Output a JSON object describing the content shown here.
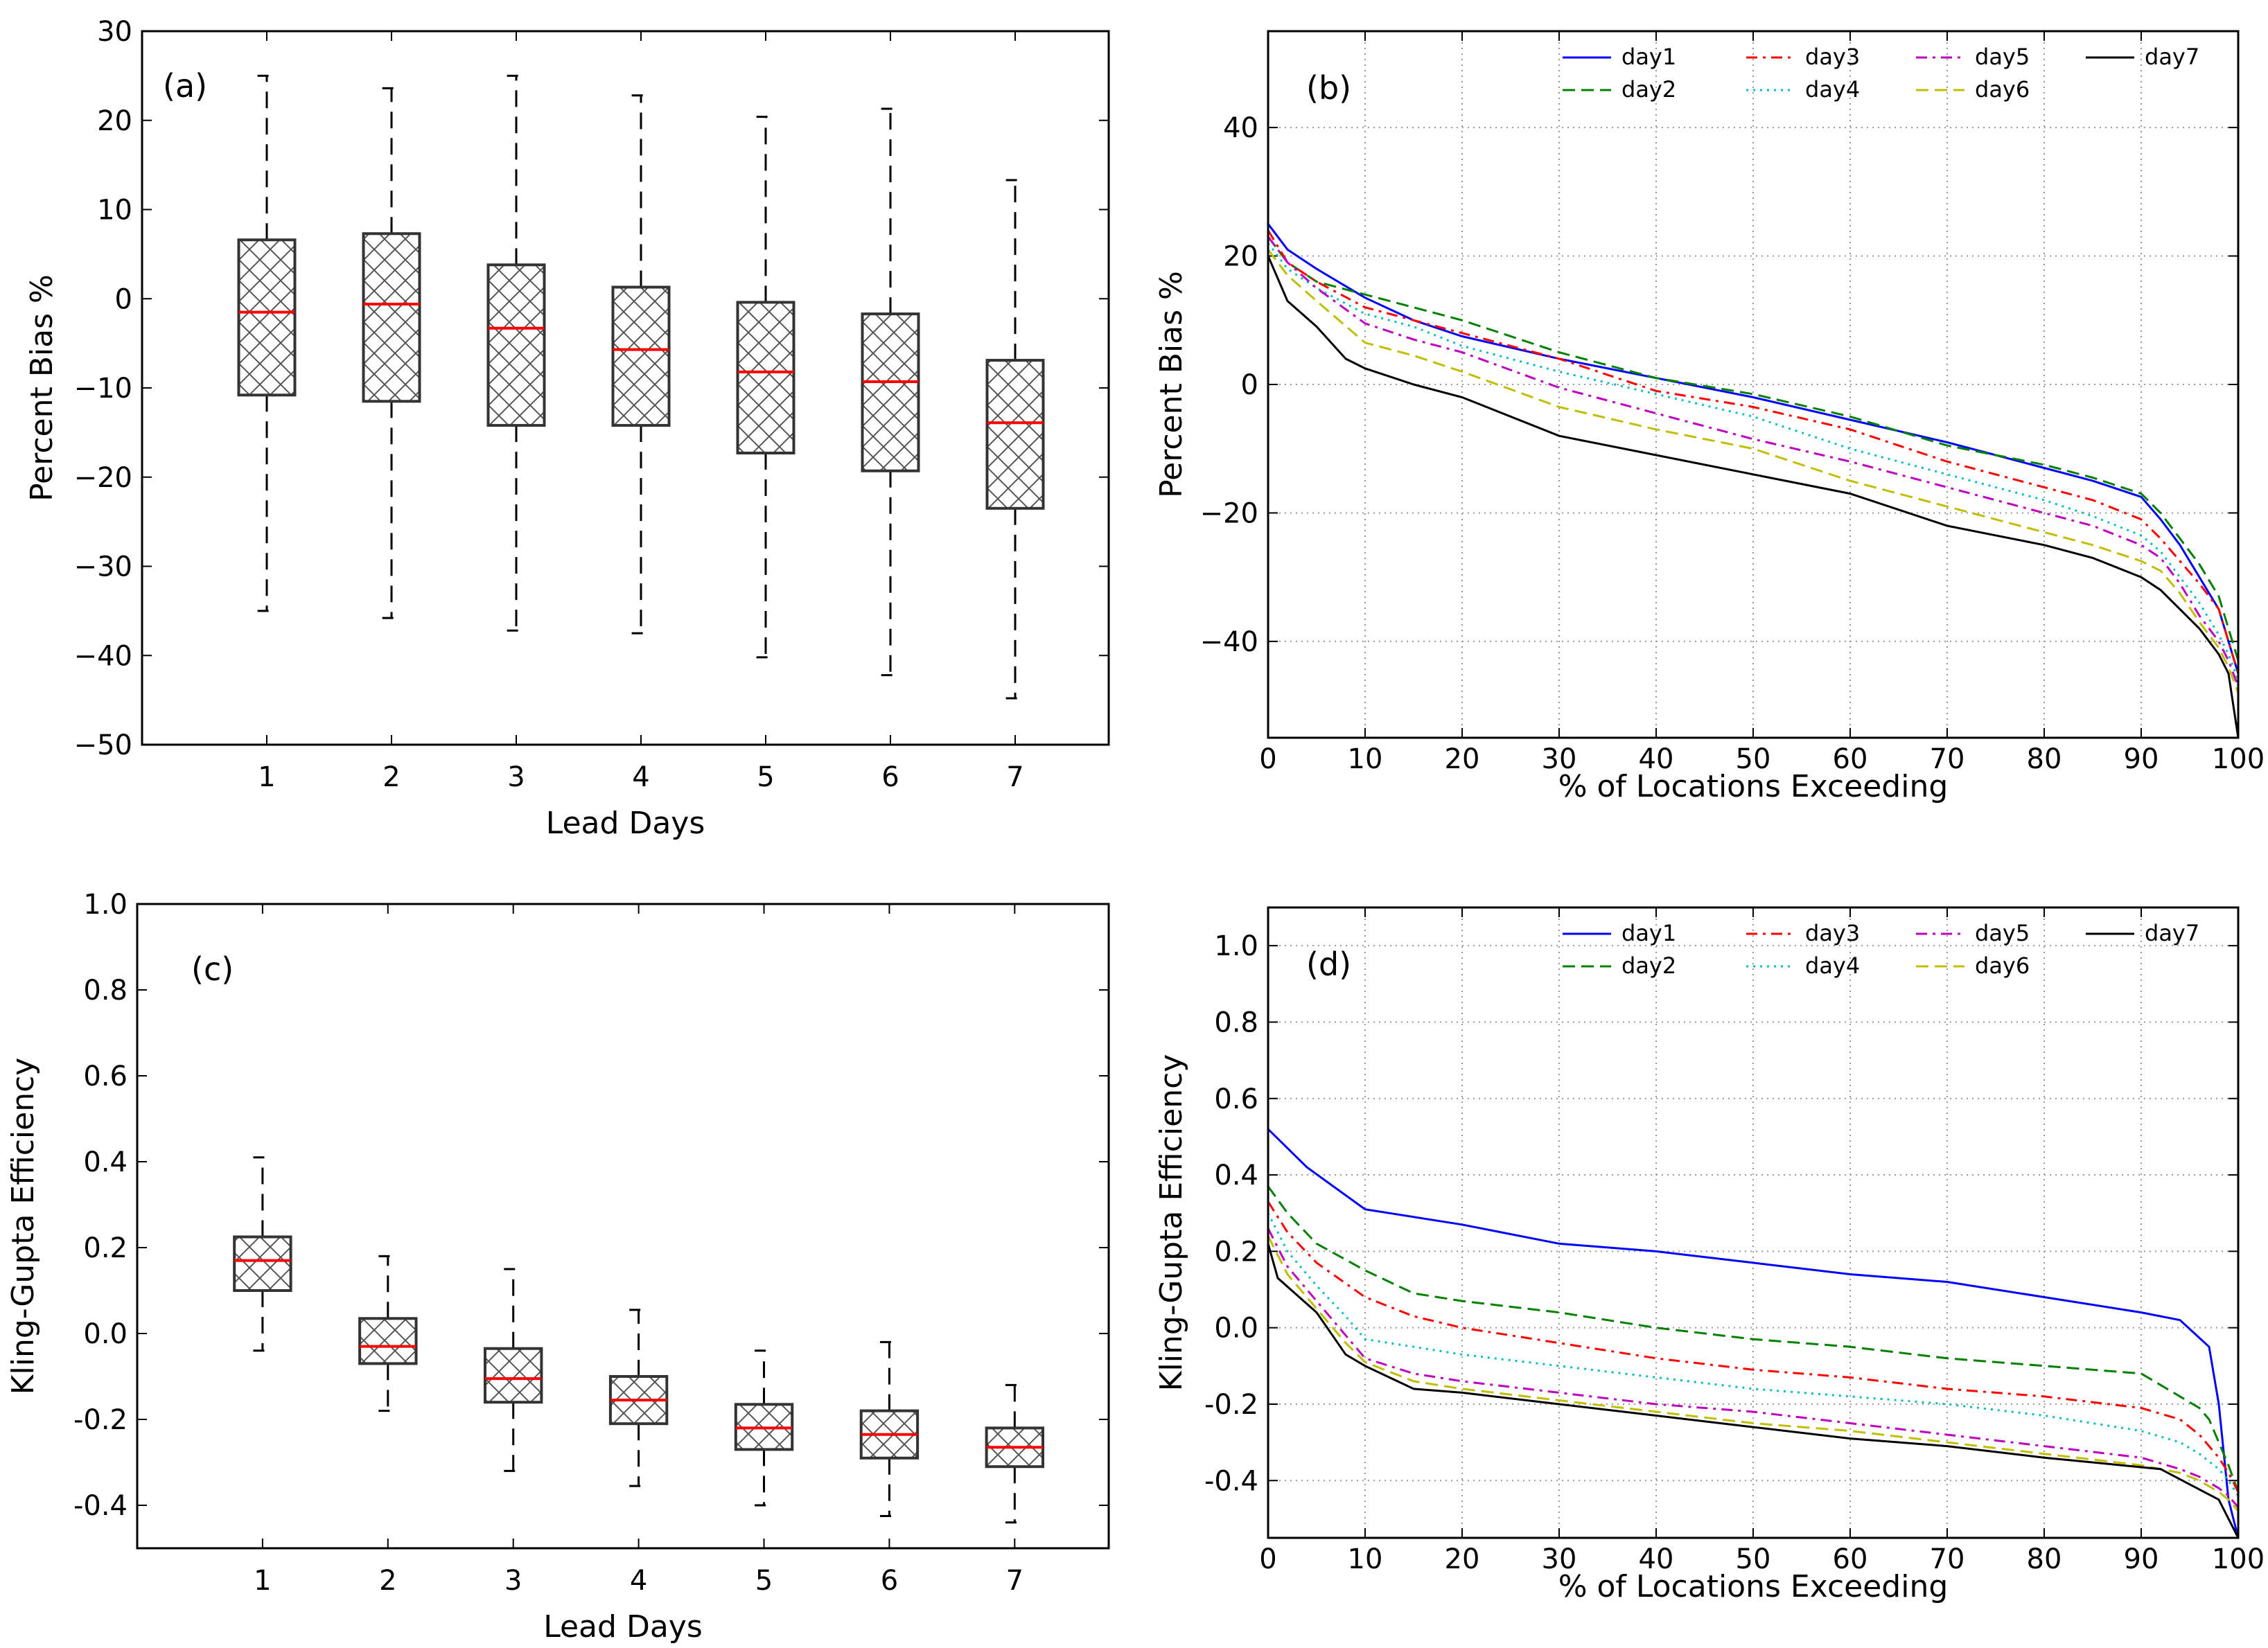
{
  "chart_data": [
    {
      "id": "a",
      "type": "boxplot",
      "panel_label": "(a)",
      "xlabel": "Lead Days",
      "ylabel": "Percent Bias %",
      "ylim": [
        -50,
        30
      ],
      "yticks": [
        30,
        20,
        10,
        0,
        -10,
        -20,
        -30,
        -40,
        -50
      ],
      "xlim": [
        0,
        7.75
      ],
      "categories": [
        "1",
        "2",
        "3",
        "4",
        "5",
        "6",
        "7"
      ],
      "boxes": [
        {
          "whislo": -35,
          "q1": -10.8,
          "med": -1.5,
          "q3": 6.6,
          "whishi": 25
        },
        {
          "whislo": -35.8,
          "q1": -11.5,
          "med": -0.6,
          "q3": 7.3,
          "whishi": 23.6
        },
        {
          "whislo": -37.2,
          "q1": -14.2,
          "med": -3.3,
          "q3": 3.8,
          "whishi": 25
        },
        {
          "whislo": -37.5,
          "q1": -14.2,
          "med": -5.7,
          "q3": 1.3,
          "whishi": 22.8
        },
        {
          "whislo": -40.2,
          "q1": -17.3,
          "med": -8.2,
          "q3": -0.4,
          "whishi": 20.4
        },
        {
          "whislo": -42.2,
          "q1": -19.3,
          "med": -9.3,
          "q3": -1.7,
          "whishi": 21.3
        },
        {
          "whislo": -44.8,
          "q1": -23.5,
          "med": -13.9,
          "q3": -6.9,
          "whishi": 13.3
        }
      ]
    },
    {
      "id": "b",
      "type": "line",
      "panel_label": "(b)",
      "xlabel": "% of Locations Exceeding",
      "ylabel": "Percent Bias %",
      "xlim": [
        0,
        100
      ],
      "ylim": [
        -55,
        55
      ],
      "xticks": [
        0,
        10,
        20,
        30,
        40,
        50,
        60,
        70,
        80,
        90,
        100
      ],
      "yticks": [
        40,
        20,
        0,
        -20,
        -40
      ],
      "grid": true,
      "legend": "top",
      "series": [
        {
          "name": "day1",
          "color": "#0000ff",
          "dash": "",
          "x": [
            0,
            2,
            5,
            10,
            15,
            20,
            30,
            40,
            50,
            60,
            70,
            80,
            85,
            90,
            92,
            94,
            96,
            98,
            99,
            100
          ],
          "y": [
            25,
            21,
            18,
            13.5,
            10,
            7.5,
            4,
            1,
            -2,
            -5.5,
            -9,
            -13,
            -15,
            -17.5,
            -21,
            -25,
            -30,
            -35,
            -40,
            -45
          ]
        },
        {
          "name": "day2",
          "color": "#008000",
          "dash": "18 9",
          "x": [
            0,
            2,
            5,
            10,
            15,
            20,
            30,
            40,
            50,
            60,
            70,
            80,
            85,
            90,
            92,
            94,
            96,
            98,
            99,
            100
          ],
          "y": [
            23,
            19,
            16,
            14,
            12,
            10,
            5,
            1,
            -1.5,
            -5,
            -9.5,
            -12.5,
            -14.5,
            -17,
            -20,
            -24,
            -28,
            -33,
            -38,
            -43
          ]
        },
        {
          "name": "day3",
          "color": "#ff0000",
          "dash": "16 8 4 8",
          "x": [
            0,
            2,
            5,
            10,
            15,
            20,
            30,
            40,
            50,
            60,
            70,
            80,
            85,
            90,
            92,
            94,
            96,
            98,
            99,
            100
          ],
          "y": [
            24,
            19,
            16,
            12,
            10,
            8,
            4,
            -1,
            -3.5,
            -7,
            -12,
            -16,
            -18,
            -21,
            -24,
            -27.5,
            -31,
            -35,
            -40,
            -45
          ]
        },
        {
          "name": "day4",
          "color": "#00bfbf",
          "dash": "3 7",
          "x": [
            0,
            2,
            5,
            10,
            15,
            20,
            30,
            40,
            50,
            60,
            70,
            80,
            85,
            90,
            92,
            94,
            96,
            98,
            99,
            100
          ],
          "y": [
            22,
            18,
            15,
            11,
            9,
            6,
            2,
            -1.5,
            -5,
            -10,
            -14,
            -18,
            -20.5,
            -23.5,
            -26,
            -30,
            -34,
            -39,
            -42,
            -46
          ]
        },
        {
          "name": "day5",
          "color": "#bf00bf",
          "dash": "16 8 4 8",
          "x": [
            0,
            2,
            5,
            10,
            15,
            20,
            30,
            40,
            50,
            60,
            70,
            80,
            85,
            90,
            92,
            94,
            96,
            98,
            99,
            100
          ],
          "y": [
            23,
            19,
            15,
            9.5,
            7,
            5,
            -0.5,
            -4.5,
            -8.5,
            -12,
            -16,
            -20,
            -22,
            -25,
            -27,
            -31,
            -36,
            -40,
            -43,
            -47
          ]
        },
        {
          "name": "day6",
          "color": "#bfbf00",
          "dash": "18 9",
          "x": [
            0,
            2,
            5,
            10,
            15,
            20,
            30,
            40,
            50,
            60,
            70,
            80,
            85,
            90,
            92,
            94,
            96,
            98,
            99,
            100
          ],
          "y": [
            21,
            17,
            13,
            6.5,
            4.5,
            2,
            -3.5,
            -7,
            -10,
            -15,
            -19,
            -23,
            -25,
            -27.5,
            -29,
            -32.5,
            -37,
            -41,
            -44,
            -48
          ]
        },
        {
          "name": "day7",
          "color": "#000000",
          "dash": "",
          "x": [
            0,
            2,
            5,
            8,
            10,
            15,
            20,
            30,
            40,
            50,
            60,
            70,
            80,
            85,
            90,
            92,
            94,
            96,
            98,
            99,
            100
          ],
          "y": [
            20,
            13,
            9,
            4,
            2.5,
            0,
            -2,
            -8,
            -11,
            -14,
            -17,
            -22,
            -25,
            -27,
            -30,
            -32,
            -35,
            -38,
            -42,
            -45,
            -55
          ]
        }
      ]
    },
    {
      "id": "c",
      "type": "boxplot",
      "panel_label": "(c)",
      "xlabel": "Lead Days",
      "ylabel": "Kling-Gupta Efficiency",
      "ylim": [
        -0.5,
        1.0
      ],
      "yticks": [
        1.0,
        0.8,
        0.6,
        0.4,
        0.2,
        0.0,
        -0.2,
        -0.4
      ],
      "ytick_labels": [
        "1.0",
        "0.8",
        "0.6",
        "0.4",
        "0.2",
        "0.0",
        "-0.2",
        "-0.4"
      ],
      "xlim": [
        0,
        7.75
      ],
      "categories": [
        "1",
        "2",
        "3",
        "4",
        "5",
        "6",
        "7"
      ],
      "boxes": [
        {
          "whislo": -0.04,
          "q1": 0.1,
          "med": 0.17,
          "q3": 0.225,
          "whishi": 0.41
        },
        {
          "whislo": -0.18,
          "q1": -0.07,
          "med": -0.03,
          "q3": 0.035,
          "whishi": 0.18
        },
        {
          "whislo": -0.32,
          "q1": -0.16,
          "med": -0.105,
          "q3": -0.035,
          "whishi": 0.15
        },
        {
          "whislo": -0.355,
          "q1": -0.21,
          "med": -0.155,
          "q3": -0.1,
          "whishi": 0.055
        },
        {
          "whislo": -0.4,
          "q1": -0.27,
          "med": -0.22,
          "q3": -0.165,
          "whishi": -0.04
        },
        {
          "whislo": -0.425,
          "q1": -0.29,
          "med": -0.235,
          "q3": -0.18,
          "whishi": -0.02
        },
        {
          "whislo": -0.44,
          "q1": -0.31,
          "med": -0.265,
          "q3": -0.22,
          "whishi": -0.12
        }
      ]
    },
    {
      "id": "d",
      "type": "line",
      "panel_label": "(d)",
      "xlabel": "% of Locations Exceeding",
      "ylabel": "Kling-Gupta Efficiency",
      "xlim": [
        0,
        100
      ],
      "ylim": [
        -0.55,
        1.1
      ],
      "xticks": [
        0,
        10,
        20,
        30,
        40,
        50,
        60,
        70,
        80,
        90,
        100
      ],
      "yticks": [
        1.0,
        0.8,
        0.6,
        0.4,
        0.2,
        0.0,
        -0.2,
        -0.4
      ],
      "ytick_labels": [
        "1.0",
        "0.8",
        "0.6",
        "0.4",
        "0.2",
        "0.0",
        "-0.2",
        "-0.4"
      ],
      "grid": true,
      "legend": "top",
      "series": [
        {
          "name": "day1",
          "color": "#0000ff",
          "dash": "",
          "x": [
            0,
            4,
            10,
            20,
            30,
            40,
            50,
            60,
            70,
            80,
            90,
            94,
            97,
            98,
            99,
            100
          ],
          "y": [
            0.52,
            0.42,
            0.31,
            0.27,
            0.22,
            0.2,
            0.17,
            0.14,
            0.12,
            0.08,
            0.04,
            0.02,
            -0.05,
            -0.2,
            -0.45,
            -0.55
          ]
        },
        {
          "name": "day2",
          "color": "#008000",
          "dash": "18 9",
          "x": [
            0,
            2,
            5,
            10,
            15,
            20,
            30,
            40,
            50,
            60,
            70,
            80,
            90,
            94,
            96,
            97,
            98,
            99,
            100
          ],
          "y": [
            0.37,
            0.3,
            0.22,
            0.15,
            0.09,
            0.07,
            0.04,
            0.0,
            -0.03,
            -0.05,
            -0.08,
            -0.1,
            -0.12,
            -0.18,
            -0.21,
            -0.24,
            -0.3,
            -0.36,
            -0.43
          ]
        },
        {
          "name": "day3",
          "color": "#ff0000",
          "dash": "16 8 4 8",
          "x": [
            0,
            2,
            5,
            10,
            15,
            20,
            30,
            40,
            50,
            60,
            70,
            80,
            90,
            94,
            96,
            98,
            99,
            100
          ],
          "y": [
            0.33,
            0.25,
            0.17,
            0.08,
            0.03,
            0.0,
            -0.04,
            -0.08,
            -0.11,
            -0.13,
            -0.16,
            -0.18,
            -0.21,
            -0.24,
            -0.28,
            -0.34,
            -0.38,
            -0.43
          ]
        },
        {
          "name": "day4",
          "color": "#00bfbf",
          "dash": "3 7",
          "x": [
            0,
            2,
            5,
            8,
            10,
            15,
            20,
            30,
            40,
            50,
            60,
            70,
            80,
            90,
            94,
            96,
            98,
            99,
            100
          ],
          "y": [
            0.3,
            0.2,
            0.11,
            0.03,
            -0.03,
            -0.05,
            -0.07,
            -0.1,
            -0.13,
            -0.16,
            -0.18,
            -0.2,
            -0.23,
            -0.27,
            -0.3,
            -0.33,
            -0.37,
            -0.4,
            -0.44
          ]
        },
        {
          "name": "day5",
          "color": "#bf00bf",
          "dash": "16 8 4 8",
          "x": [
            0,
            2,
            5,
            8,
            10,
            15,
            20,
            30,
            40,
            50,
            60,
            70,
            80,
            90,
            94,
            96,
            98,
            99,
            100
          ],
          "y": [
            0.26,
            0.16,
            0.07,
            -0.02,
            -0.08,
            -0.12,
            -0.14,
            -0.17,
            -0.2,
            -0.22,
            -0.25,
            -0.28,
            -0.31,
            -0.34,
            -0.37,
            -0.39,
            -0.42,
            -0.44,
            -0.47
          ]
        },
        {
          "name": "day6",
          "color": "#bfbf00",
          "dash": "18 9",
          "x": [
            0,
            2,
            5,
            8,
            10,
            15,
            20,
            30,
            40,
            50,
            60,
            70,
            80,
            90,
            94,
            96,
            98,
            99,
            100
          ],
          "y": [
            0.24,
            0.14,
            0.05,
            -0.04,
            -0.09,
            -0.14,
            -0.16,
            -0.19,
            -0.22,
            -0.25,
            -0.27,
            -0.3,
            -0.33,
            -0.36,
            -0.38,
            -0.4,
            -0.43,
            -0.45,
            -0.48
          ]
        },
        {
          "name": "day7",
          "color": "#000000",
          "dash": "",
          "x": [
            0,
            1,
            5,
            8,
            10,
            15,
            20,
            30,
            40,
            50,
            60,
            70,
            80,
            92,
            95,
            98,
            99,
            100
          ],
          "y": [
            0.22,
            0.13,
            0.04,
            -0.07,
            -0.1,
            -0.16,
            -0.17,
            -0.2,
            -0.23,
            -0.26,
            -0.29,
            -0.31,
            -0.34,
            -0.37,
            -0.41,
            -0.45,
            -0.5,
            -0.55
          ]
        }
      ]
    }
  ]
}
